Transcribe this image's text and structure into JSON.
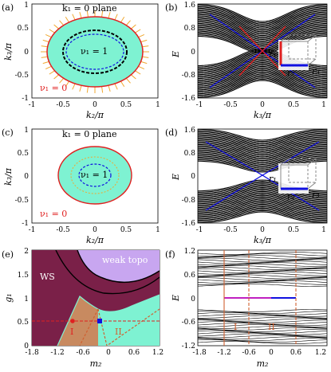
{
  "panels": {
    "a": {
      "label": "(a)",
      "plane": "k₁ = 0 plane",
      "inner": "ν₁ = 1",
      "outer": "ν₁ = 0",
      "ylabel": "k₃/π",
      "xlabel": "k₂/π",
      "xticks": [
        "-1",
        "-0.5",
        "0",
        "0.5",
        "1"
      ],
      "yticks": [
        "1",
        "0.5",
        "0",
        "-0.5",
        "-1"
      ]
    },
    "b": {
      "label": "(b)",
      "ylabel": "E",
      "xlabel": "k₃/π",
      "xticks": [
        "-1",
        "-0.5",
        "0",
        "0.5",
        "1"
      ],
      "yticks": [
        "1.6",
        "0.8",
        "0",
        "-0.8",
        "-1.6"
      ],
      "r1": "r₁",
      "r2": "r₂",
      "r3": "r₃"
    },
    "c": {
      "label": "(c)",
      "plane": "k₁ = 0 plane",
      "inner": "ν₁ = 1",
      "outer": "ν₁ = 0",
      "ylabel": "k₃/π",
      "xlabel": "k₂/π",
      "xticks": [
        "-1",
        "-0.5",
        "0",
        "0.5",
        "1"
      ],
      "yticks": [
        "1",
        "0.5",
        "0",
        "-0.5",
        "-1"
      ]
    },
    "d": {
      "label": "(d)",
      "ylabel": "E",
      "xlabel": "k₃/π",
      "xticks": [
        "-1",
        "-0.5",
        "0",
        "0.5",
        "1"
      ],
      "yticks": [
        "1.6",
        "0.8",
        "0",
        "-0.8",
        "-1.6"
      ],
      "r1": "r₁",
      "r2": "r₂",
      "r3": "r₃"
    },
    "e": {
      "label": "(e)",
      "ylabel": "g₁",
      "xlabel": "m₂",
      "ws": "WS",
      "weak": "weak topo",
      "I": "I",
      "II": "II",
      "xticks": [
        "-1.8",
        "-1.2",
        "-0.6",
        "0",
        "0.6",
        "1.2"
      ],
      "yticks": [
        "2",
        "1.5",
        "1",
        "0.5",
        "0"
      ]
    },
    "f": {
      "label": "(f)",
      "ylabel": "E",
      "xlabel": "m₂",
      "I": "I",
      "II": "II",
      "xticks": [
        "-1.8",
        "-1.2",
        "-0.6",
        "0",
        "0.6",
        "1.2"
      ],
      "yticks": [
        "1.2",
        "0.6",
        "0",
        "-0.6",
        "-1.2"
      ]
    }
  },
  "colors": {
    "teal": "#7ef2d2",
    "gold": "#f0a830",
    "red": "#e02020",
    "blue": "#1010e0",
    "maroon": "#7a2048",
    "lavender": "#c8a6f0",
    "tan": "#c88a60",
    "orange": "#d06030"
  }
}
